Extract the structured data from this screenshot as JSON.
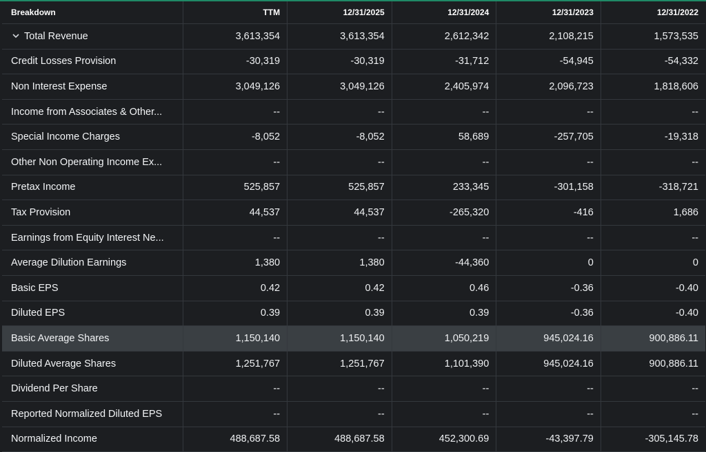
{
  "table": {
    "headers": [
      "Breakdown",
      "TTM",
      "12/31/2025",
      "12/31/2024",
      "12/31/2023",
      "12/31/2022"
    ],
    "rows": [
      {
        "label": "Total Revenue",
        "values": [
          "3,613,354",
          "3,613,354",
          "2,612,342",
          "2,108,215",
          "1,573,535"
        ]
      },
      {
        "label": "Credit Losses Provision",
        "values": [
          "-30,319",
          "-30,319",
          "-31,712",
          "-54,945",
          "-54,332"
        ]
      },
      {
        "label": "Non Interest Expense",
        "values": [
          "3,049,126",
          "3,049,126",
          "2,405,974",
          "2,096,723",
          "1,818,606"
        ]
      },
      {
        "label": "Income from Associates & Other...",
        "values": [
          "--",
          "--",
          "--",
          "--",
          "--"
        ]
      },
      {
        "label": "Special Income Charges",
        "values": [
          "-8,052",
          "-8,052",
          "58,689",
          "-257,705",
          "-19,318"
        ]
      },
      {
        "label": "Other Non Operating Income Ex...",
        "values": [
          "--",
          "--",
          "--",
          "--",
          "--"
        ]
      },
      {
        "label": "Pretax Income",
        "values": [
          "525,857",
          "525,857",
          "233,345",
          "-301,158",
          "-318,721"
        ]
      },
      {
        "label": "Tax Provision",
        "values": [
          "44,537",
          "44,537",
          "-265,320",
          "-416",
          "1,686"
        ]
      },
      {
        "label": "Earnings from Equity Interest Ne...",
        "values": [
          "--",
          "--",
          "--",
          "--",
          "--"
        ]
      },
      {
        "label": "Average Dilution Earnings",
        "values": [
          "1,380",
          "1,380",
          "-44,360",
          "0",
          "0"
        ]
      },
      {
        "label": "Basic EPS",
        "values": [
          "0.42",
          "0.42",
          "0.46",
          "-0.36",
          "-0.40"
        ]
      },
      {
        "label": "Diluted EPS",
        "values": [
          "0.39",
          "0.39",
          "0.39",
          "-0.36",
          "-0.40"
        ]
      },
      {
        "label": "Basic Average Shares",
        "values": [
          "1,150,140",
          "1,150,140",
          "1,050,219",
          "945,024.16",
          "900,886.11"
        ]
      },
      {
        "label": "Diluted Average Shares",
        "values": [
          "1,251,767",
          "1,251,767",
          "1,101,390",
          "945,024.16",
          "900,886.11"
        ]
      },
      {
        "label": "Dividend Per Share",
        "values": [
          "--",
          "--",
          "--",
          "--",
          "--"
        ]
      },
      {
        "label": "Reported Normalized Diluted EPS",
        "values": [
          "--",
          "--",
          "--",
          "--",
          "--"
        ]
      },
      {
        "label": "Normalized Income",
        "values": [
          "488,687.58",
          "488,687.58",
          "452,300.69",
          "-43,397.79",
          "-305,145.78"
        ]
      }
    ]
  },
  "icons": {
    "expand": "chevron-down-icon"
  },
  "colors": {
    "accent": "#1f8a66",
    "highlight_row": "#3a3f43",
    "background": "#1c1e21"
  }
}
